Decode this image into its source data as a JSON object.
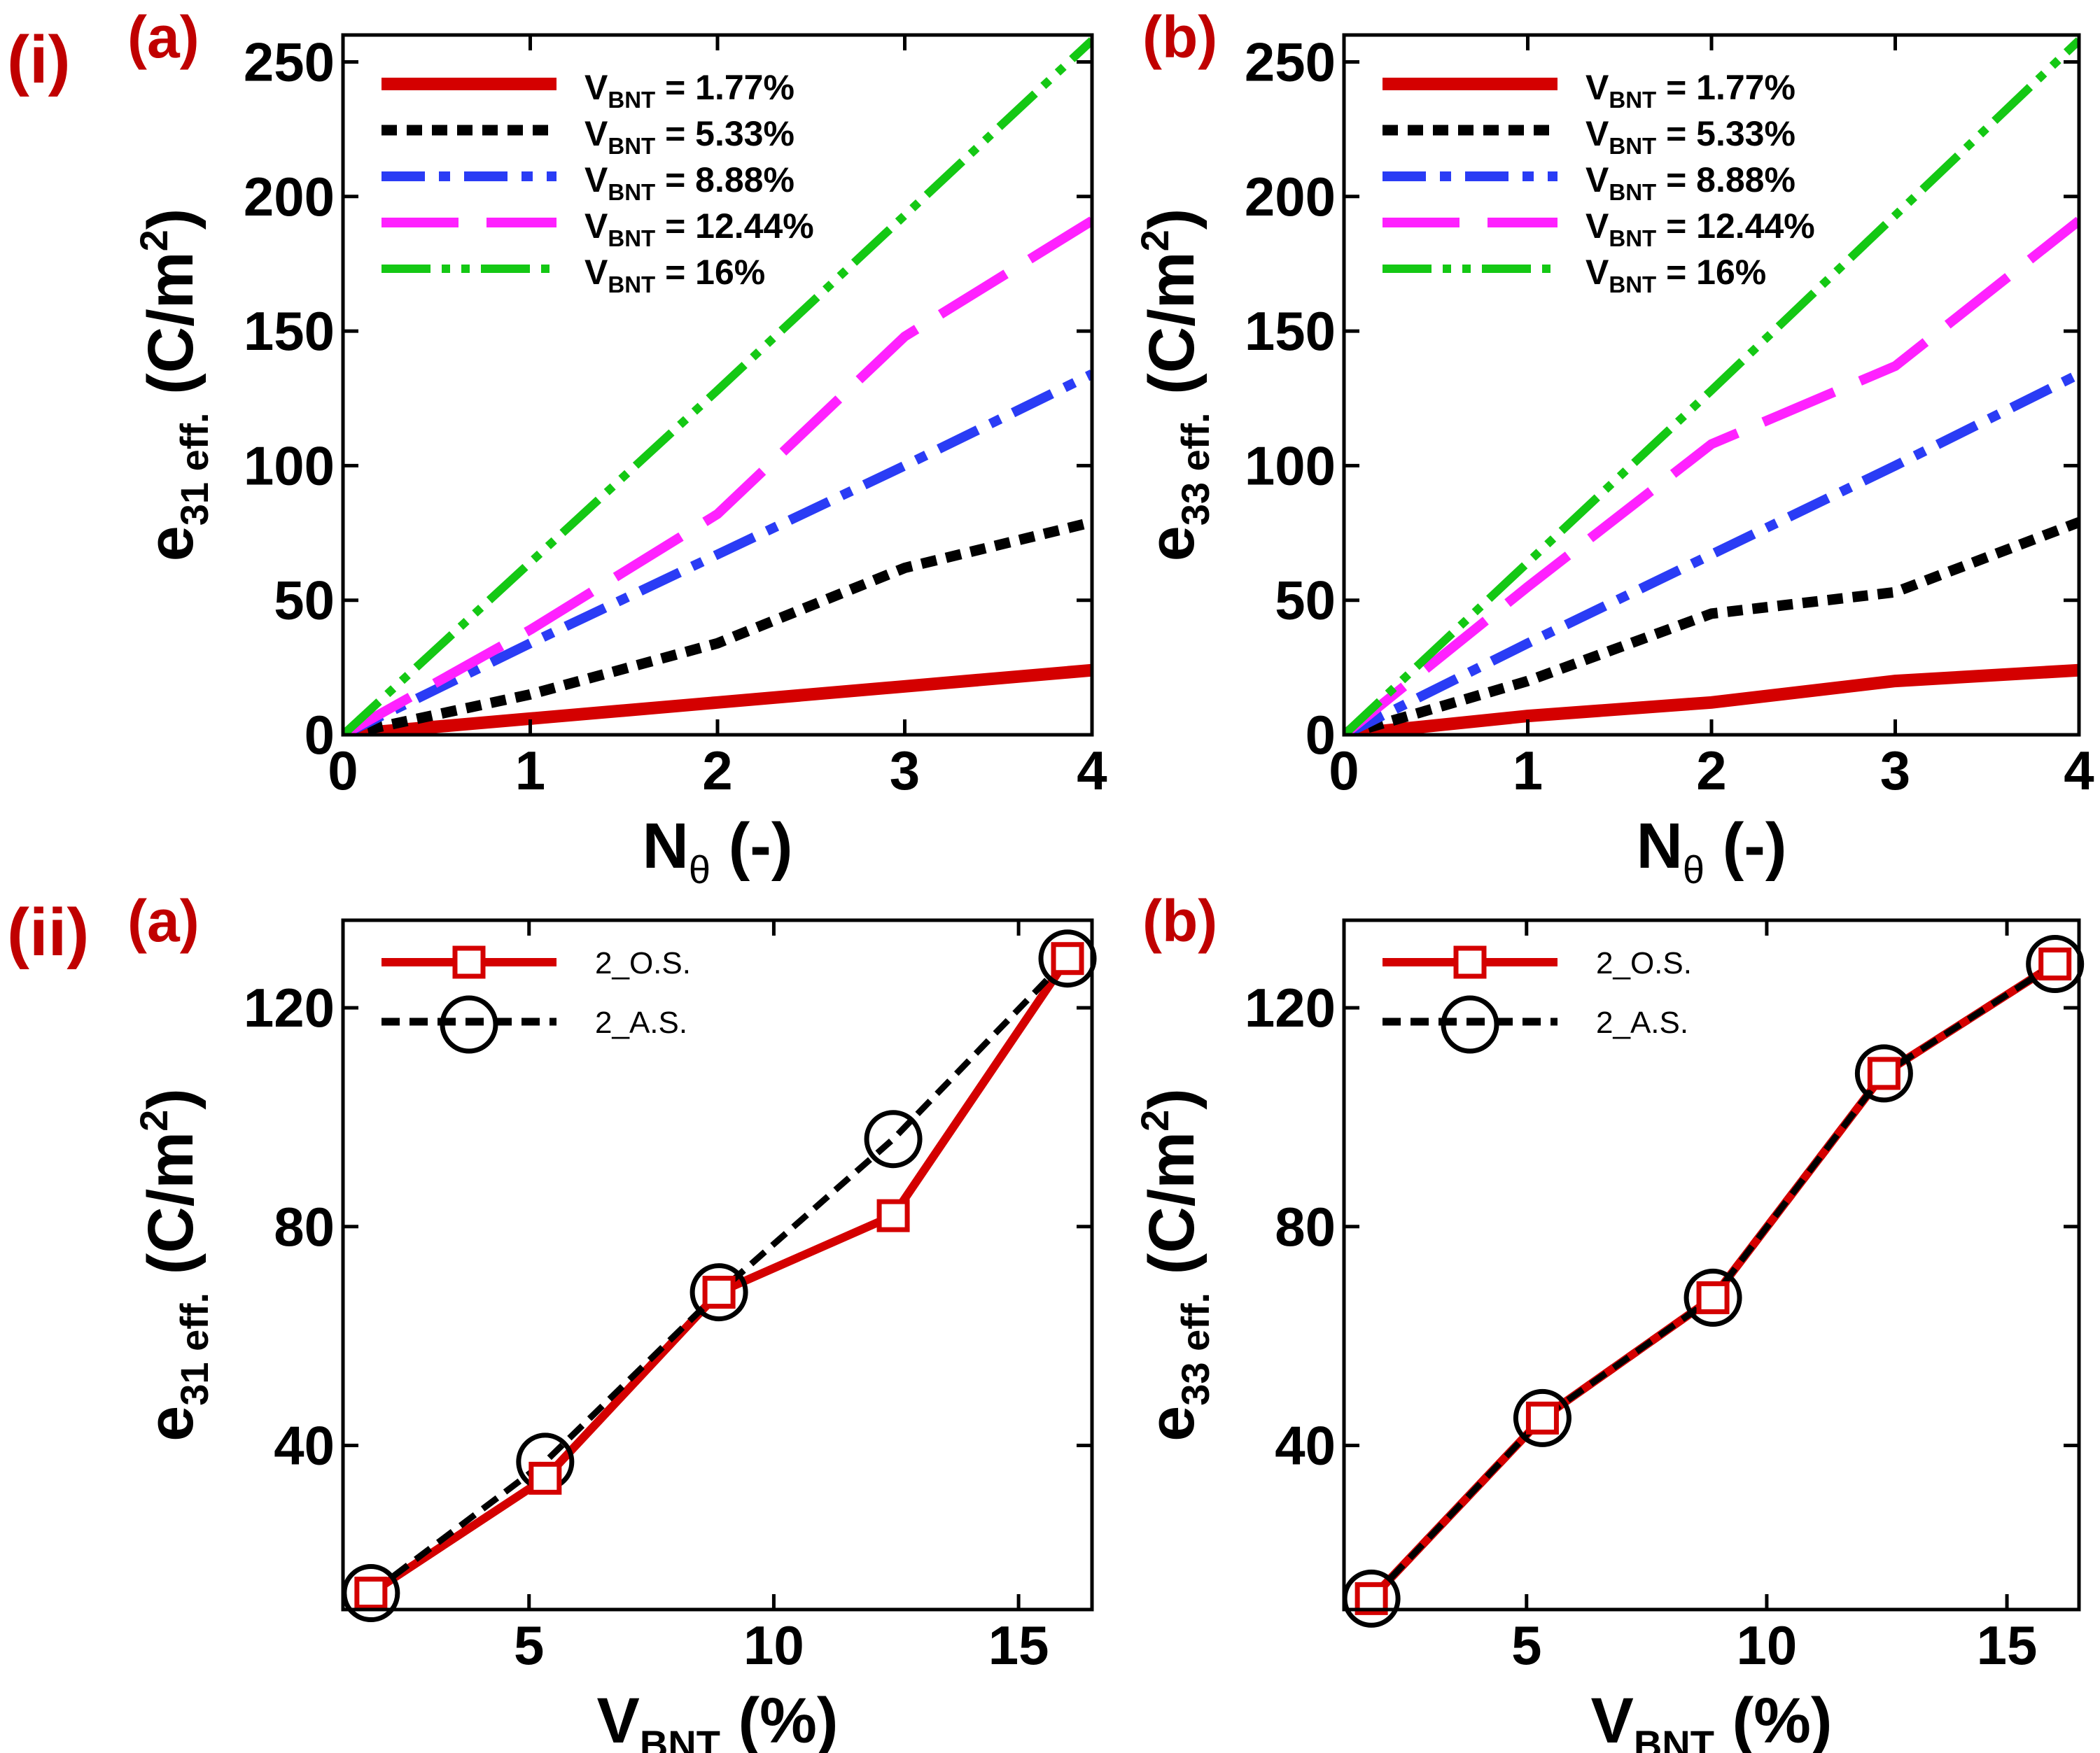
{
  "figure": {
    "row_labels": [
      "(i)",
      "(ii)"
    ],
    "panel_labels": [
      "(a)",
      "(b)"
    ]
  },
  "colors": {
    "red": "#d40000",
    "black": "#000000",
    "blue": "#2a3cf5",
    "magenta": "#ff21ff",
    "green": "#14c814",
    "label_red": "#c00000"
  },
  "chart_data": [
    {
      "id": "i-a",
      "type": "line",
      "panel_label": "(a)",
      "row_label": "(i)",
      "xlabel": {
        "main": "N",
        "sub": "θ",
        "suffix": " (-)"
      },
      "ylabel": {
        "main": "e",
        "sub": "31 eff.",
        "suffix": " (C/m",
        "sup": "2",
        "close": ")"
      },
      "xlim": [
        0,
        4
      ],
      "ylim": [
        0,
        260
      ],
      "xticks": [
        0,
        1,
        2,
        3,
        4
      ],
      "yticks": [
        0,
        50,
        100,
        150,
        200,
        250
      ],
      "legend_pos": "top-left",
      "series": [
        {
          "name": "V_BNT = 1.77%",
          "label_main": "V",
          "label_sub": "BNT",
          "label_rest": " = 1.77%",
          "color": "red",
          "style": "solid",
          "x": [
            0,
            1,
            2,
            3,
            4
          ],
          "y": [
            0,
            6,
            12,
            18,
            24
          ]
        },
        {
          "name": "V_BNT = 5.33%",
          "label_main": "V",
          "label_sub": "BNT",
          "label_rest": " = 5.33%",
          "color": "black",
          "style": "dotted",
          "x": [
            0,
            1,
            2,
            3,
            4
          ],
          "y": [
            0,
            15,
            34,
            62,
            79
          ]
        },
        {
          "name": "V_BNT = 8.88%",
          "label_main": "V",
          "label_sub": "BNT",
          "label_rest": " = 8.88%",
          "color": "blue",
          "style": "dashdot",
          "x": [
            0,
            1,
            2,
            3,
            4
          ],
          "y": [
            0,
            34,
            67,
            100,
            134
          ]
        },
        {
          "name": "V_BNT = 12.44%",
          "label_main": "V",
          "label_sub": "BNT",
          "label_rest": " = 12.44%",
          "color": "magenta",
          "style": "longdash",
          "x": [
            0,
            1,
            2,
            3,
            4
          ],
          "y": [
            0,
            39,
            82,
            148,
            191
          ]
        },
        {
          "name": "V_BNT = 16%",
          "label_main": "V",
          "label_sub": "BNT",
          "label_rest": " = 16%",
          "color": "green",
          "style": "dashdotdot",
          "x": [
            0,
            1,
            2,
            3,
            4
          ],
          "y": [
            0,
            64,
            128,
            193,
            258
          ]
        }
      ]
    },
    {
      "id": "i-b",
      "type": "line",
      "panel_label": "(b)",
      "xlabel": {
        "main": "N",
        "sub": "θ",
        "suffix": " (-)"
      },
      "ylabel": {
        "main": "e",
        "sub": "33 eff.",
        "suffix": " (C/m",
        "sup": "2",
        "close": ")"
      },
      "xlim": [
        0,
        4
      ],
      "ylim": [
        0,
        260
      ],
      "xticks": [
        0,
        1,
        2,
        3,
        4
      ],
      "yticks": [
        0,
        50,
        100,
        150,
        200,
        250
      ],
      "legend_pos": "top-left",
      "series": [
        {
          "name": "V_BNT = 1.77%",
          "label_main": "V",
          "label_sub": "BNT",
          "label_rest": " = 1.77%",
          "color": "red",
          "style": "solid",
          "x": [
            0,
            1,
            2,
            3,
            4
          ],
          "y": [
            0,
            7,
            12,
            20,
            24
          ]
        },
        {
          "name": "V_BNT = 5.33%",
          "label_main": "V",
          "label_sub": "BNT",
          "label_rest": " = 5.33%",
          "color": "black",
          "style": "dotted",
          "x": [
            0,
            1,
            2,
            3,
            4
          ],
          "y": [
            0,
            20,
            45,
            53,
            79
          ]
        },
        {
          "name": "V_BNT = 8.88%",
          "label_main": "V",
          "label_sub": "BNT",
          "label_rest": " = 8.88%",
          "color": "blue",
          "style": "dashdot",
          "x": [
            0,
            1,
            2,
            3,
            4
          ],
          "y": [
            0,
            34,
            67,
            100,
            134
          ]
        },
        {
          "name": "V_BNT = 12.44%",
          "label_main": "V",
          "label_sub": "BNT",
          "label_rest": " = 12.44%",
          "color": "magenta",
          "style": "longdash",
          "x": [
            0,
            1,
            2,
            3,
            4
          ],
          "y": [
            0,
            55,
            108,
            137,
            191
          ]
        },
        {
          "name": "V_BNT = 16%",
          "label_main": "V",
          "label_sub": "BNT",
          "label_rest": " = 16%",
          "color": "green",
          "style": "dashdotdot",
          "x": [
            0,
            1,
            2,
            3,
            4
          ],
          "y": [
            0,
            64,
            128,
            193,
            258
          ]
        }
      ]
    },
    {
      "id": "ii-a",
      "type": "line",
      "panel_label": "(a)",
      "row_label": "(ii)",
      "xlabel": {
        "main": "V",
        "sub": "BNT",
        "suffix": " (%)"
      },
      "ylabel": {
        "main": "e",
        "sub": "31 eff.",
        "suffix": " (C/m",
        "sup": "2",
        "close": ")"
      },
      "xlim": [
        1.2,
        16.5
      ],
      "ylim": [
        10,
        136
      ],
      "xticks": [
        5,
        10,
        15
      ],
      "yticks": [
        40,
        80,
        120
      ],
      "legend_pos": "top-left",
      "series": [
        {
          "name": "2_O.S.",
          "color": "red",
          "style": "solid",
          "marker": "square",
          "x": [
            1.77,
            5.33,
            8.88,
            12.44,
            16
          ],
          "y": [
            13,
            34,
            68,
            82,
            129
          ]
        },
        {
          "name": "2_A.S.",
          "color": "black",
          "style": "dotted",
          "marker": "circle",
          "x": [
            1.77,
            5.33,
            8.88,
            12.44,
            16
          ],
          "y": [
            13,
            37,
            68,
            96,
            129
          ]
        }
      ]
    },
    {
      "id": "ii-b",
      "type": "line",
      "panel_label": "(b)",
      "xlabel": {
        "main": "V",
        "sub": "BNT",
        "suffix": " (%)"
      },
      "ylabel": {
        "main": "e",
        "sub": "33 eff.",
        "suffix": " (C/m",
        "sup": "2",
        "close": ")"
      },
      "xlim": [
        1.2,
        16.5
      ],
      "ylim": [
        10,
        136
      ],
      "xticks": [
        5,
        10,
        15
      ],
      "yticks": [
        40,
        80,
        120
      ],
      "legend_pos": "top-left",
      "series": [
        {
          "name": "2_O.S.",
          "color": "red",
          "style": "solid",
          "marker": "square",
          "x": [
            1.77,
            5.33,
            8.88,
            12.44,
            16
          ],
          "y": [
            12,
            45,
            67,
            108,
            128
          ]
        },
        {
          "name": "2_A.S.",
          "color": "black",
          "style": "dotted",
          "marker": "circle",
          "x": [
            1.77,
            5.33,
            8.88,
            12.44,
            16
          ],
          "y": [
            12,
            45,
            67,
            108,
            128
          ]
        }
      ]
    }
  ]
}
